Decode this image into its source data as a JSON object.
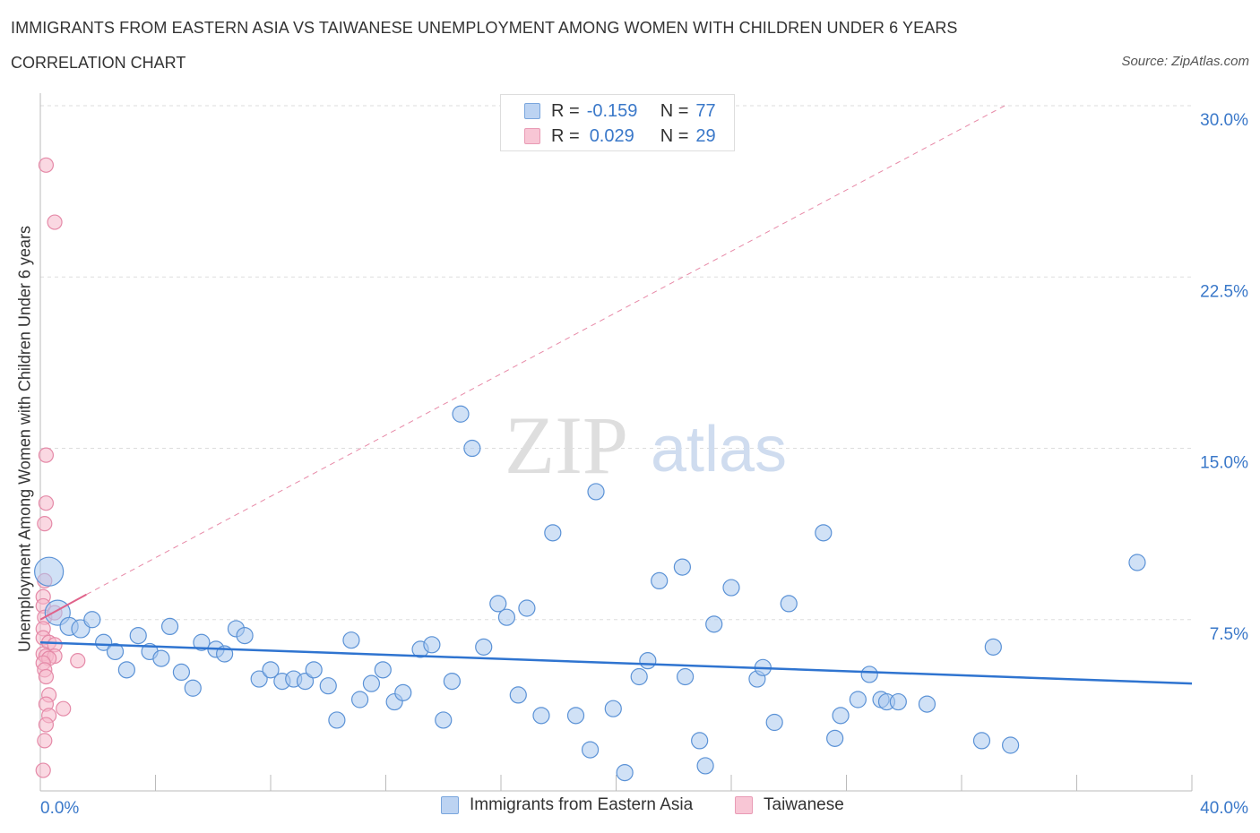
{
  "header": {
    "title": "IMMIGRANTS FROM EASTERN ASIA VS TAIWANESE UNEMPLOYMENT AMONG WOMEN WITH CHILDREN UNDER 6 YEARS",
    "subtitle": "CORRELATION CHART",
    "source": "Source: ZipAtlas.com"
  },
  "legend": {
    "blue": {
      "r_label": "R =",
      "r_value": "-0.159",
      "n_label": "N =",
      "n_value": "77"
    },
    "pink": {
      "r_label": "R =",
      "r_value": "0.029",
      "n_label": "N =",
      "n_value": "29"
    }
  },
  "watermark": {
    "zip": "ZIP",
    "atlas": "atlas"
  },
  "colors": {
    "blue_fill": "#aac8ef",
    "blue_stroke": "#5b92d6",
    "blue_line": "#2f74d0",
    "pink_fill": "#f5b8cb",
    "pink_stroke": "#e58aa8",
    "pink_line": "#e0628a",
    "axis_text": "#3a78c9",
    "grid": "#dddddd"
  },
  "chart_data": {
    "type": "scatter",
    "title": "IMMIGRANTS FROM EASTERN ASIA VS TAIWANESE UNEMPLOYMENT AMONG WOMEN WITH CHILDREN UNDER 6 YEARS",
    "xlabel": "",
    "ylabel": "Unemployment Among Women with Children Under 6 years",
    "xlim": [
      0,
      40
    ],
    "ylim": [
      0,
      30
    ],
    "x_tick_labels": [
      "0.0%",
      "40.0%"
    ],
    "y_ticks": [
      7.5,
      15.0,
      22.5,
      30.0
    ],
    "y_tick_labels": [
      "7.5%",
      "15.0%",
      "22.5%",
      "30.0%"
    ],
    "grid": true,
    "legend_position": "top-center",
    "series": [
      {
        "name": "Immigrants from Eastern Asia",
        "color": "#5b92d6",
        "r": -0.159,
        "n": 77,
        "trend": {
          "x": [
            0,
            40
          ],
          "y": [
            6.5,
            4.7
          ]
        },
        "points": [
          [
            0.3,
            9.6,
            16
          ],
          [
            0.6,
            7.8,
            14
          ],
          [
            1.0,
            7.2,
            10
          ],
          [
            1.4,
            7.1,
            10
          ],
          [
            1.8,
            7.5,
            9
          ],
          [
            2.2,
            6.5,
            9
          ],
          [
            2.6,
            6.1,
            9
          ],
          [
            3.0,
            5.3,
            9
          ],
          [
            3.4,
            6.8,
            9
          ],
          [
            3.8,
            6.1,
            9
          ],
          [
            4.2,
            5.8,
            9
          ],
          [
            4.5,
            7.2,
            9
          ],
          [
            4.9,
            5.2,
            9
          ],
          [
            5.3,
            4.5,
            9
          ],
          [
            5.6,
            6.5,
            9
          ],
          [
            6.1,
            6.2,
            9
          ],
          [
            6.4,
            6.0,
            9
          ],
          [
            6.8,
            7.1,
            9
          ],
          [
            7.1,
            6.8,
            9
          ],
          [
            7.6,
            4.9,
            9
          ],
          [
            8.0,
            5.3,
            9
          ],
          [
            8.4,
            4.8,
            9
          ],
          [
            8.8,
            4.9,
            9
          ],
          [
            9.2,
            4.8,
            9
          ],
          [
            9.5,
            5.3,
            9
          ],
          [
            10.0,
            4.6,
            9
          ],
          [
            10.3,
            3.1,
            9
          ],
          [
            10.8,
            6.6,
            9
          ],
          [
            11.1,
            4.0,
            9
          ],
          [
            11.5,
            4.7,
            9
          ],
          [
            11.9,
            5.3,
            9
          ],
          [
            12.3,
            3.9,
            9
          ],
          [
            12.6,
            4.3,
            9
          ],
          [
            13.2,
            6.2,
            9
          ],
          [
            13.6,
            6.4,
            9
          ],
          [
            14.0,
            3.1,
            9
          ],
          [
            14.3,
            4.8,
            9
          ],
          [
            14.6,
            16.5,
            9
          ],
          [
            15.0,
            15.0,
            9
          ],
          [
            15.4,
            6.3,
            9
          ],
          [
            15.9,
            8.2,
            9
          ],
          [
            16.2,
            7.6,
            9
          ],
          [
            16.6,
            4.2,
            9
          ],
          [
            16.9,
            8.0,
            9
          ],
          [
            17.4,
            3.3,
            9
          ],
          [
            17.8,
            11.3,
            9
          ],
          [
            18.6,
            3.3,
            9
          ],
          [
            19.1,
            1.8,
            9
          ],
          [
            19.3,
            13.1,
            9
          ],
          [
            19.9,
            3.6,
            9
          ],
          [
            20.3,
            0.8,
            9
          ],
          [
            20.8,
            5.0,
            9
          ],
          [
            21.1,
            5.7,
            9
          ],
          [
            21.5,
            9.2,
            9
          ],
          [
            22.3,
            9.8,
            9
          ],
          [
            22.4,
            5.0,
            9
          ],
          [
            22.9,
            2.2,
            9
          ],
          [
            23.1,
            1.1,
            9
          ],
          [
            23.4,
            7.3,
            9
          ],
          [
            24.0,
            8.9,
            9
          ],
          [
            24.9,
            4.9,
            9
          ],
          [
            25.1,
            5.4,
            9
          ],
          [
            25.5,
            3.0,
            9
          ],
          [
            26.0,
            8.2,
            9
          ],
          [
            27.2,
            11.3,
            9
          ],
          [
            27.6,
            2.3,
            9
          ],
          [
            27.8,
            3.3,
            9
          ],
          [
            28.4,
            4.0,
            9
          ],
          [
            28.8,
            5.1,
            9
          ],
          [
            29.2,
            4.0,
            9
          ],
          [
            29.4,
            3.9,
            9
          ],
          [
            29.8,
            3.9,
            9
          ],
          [
            30.8,
            3.8,
            9
          ],
          [
            32.7,
            2.2,
            9
          ],
          [
            33.1,
            6.3,
            9
          ],
          [
            33.7,
            2.0,
            9
          ],
          [
            38.1,
            10.0,
            9
          ]
        ]
      },
      {
        "name": "Taiwanese",
        "color": "#e58aa8",
        "r": 0.029,
        "n": 29,
        "trend": {
          "x": [
            0,
            1.6
          ],
          "y": [
            7.5,
            8.6
          ]
        },
        "trend_extension": {
          "x": [
            1.6,
            33.5
          ],
          "y": [
            8.6,
            30.0
          ]
        },
        "points": [
          [
            0.2,
            27.4,
            8
          ],
          [
            0.5,
            24.9,
            8
          ],
          [
            0.2,
            14.7,
            8
          ],
          [
            0.2,
            12.6,
            8
          ],
          [
            0.15,
            11.7,
            8
          ],
          [
            0.15,
            9.2,
            8
          ],
          [
            0.1,
            8.5,
            8
          ],
          [
            0.1,
            8.1,
            8
          ],
          [
            0.15,
            7.6,
            8
          ],
          [
            0.5,
            7.8,
            8
          ],
          [
            0.1,
            7.1,
            8
          ],
          [
            0.1,
            6.7,
            8
          ],
          [
            0.3,
            6.5,
            8
          ],
          [
            0.5,
            6.4,
            8
          ],
          [
            0.1,
            6.0,
            8
          ],
          [
            0.2,
            5.9,
            8
          ],
          [
            0.5,
            5.9,
            8
          ],
          [
            0.3,
            5.8,
            8
          ],
          [
            0.1,
            5.6,
            8
          ],
          [
            1.3,
            5.7,
            8
          ],
          [
            0.15,
            5.3,
            8
          ],
          [
            0.2,
            5.0,
            8
          ],
          [
            0.3,
            4.2,
            8
          ],
          [
            0.2,
            3.8,
            8
          ],
          [
            0.8,
            3.6,
            8
          ],
          [
            0.3,
            3.3,
            8
          ],
          [
            0.2,
            2.9,
            8
          ],
          [
            0.15,
            2.2,
            8
          ],
          [
            0.1,
            0.9,
            8
          ]
        ]
      }
    ]
  }
}
